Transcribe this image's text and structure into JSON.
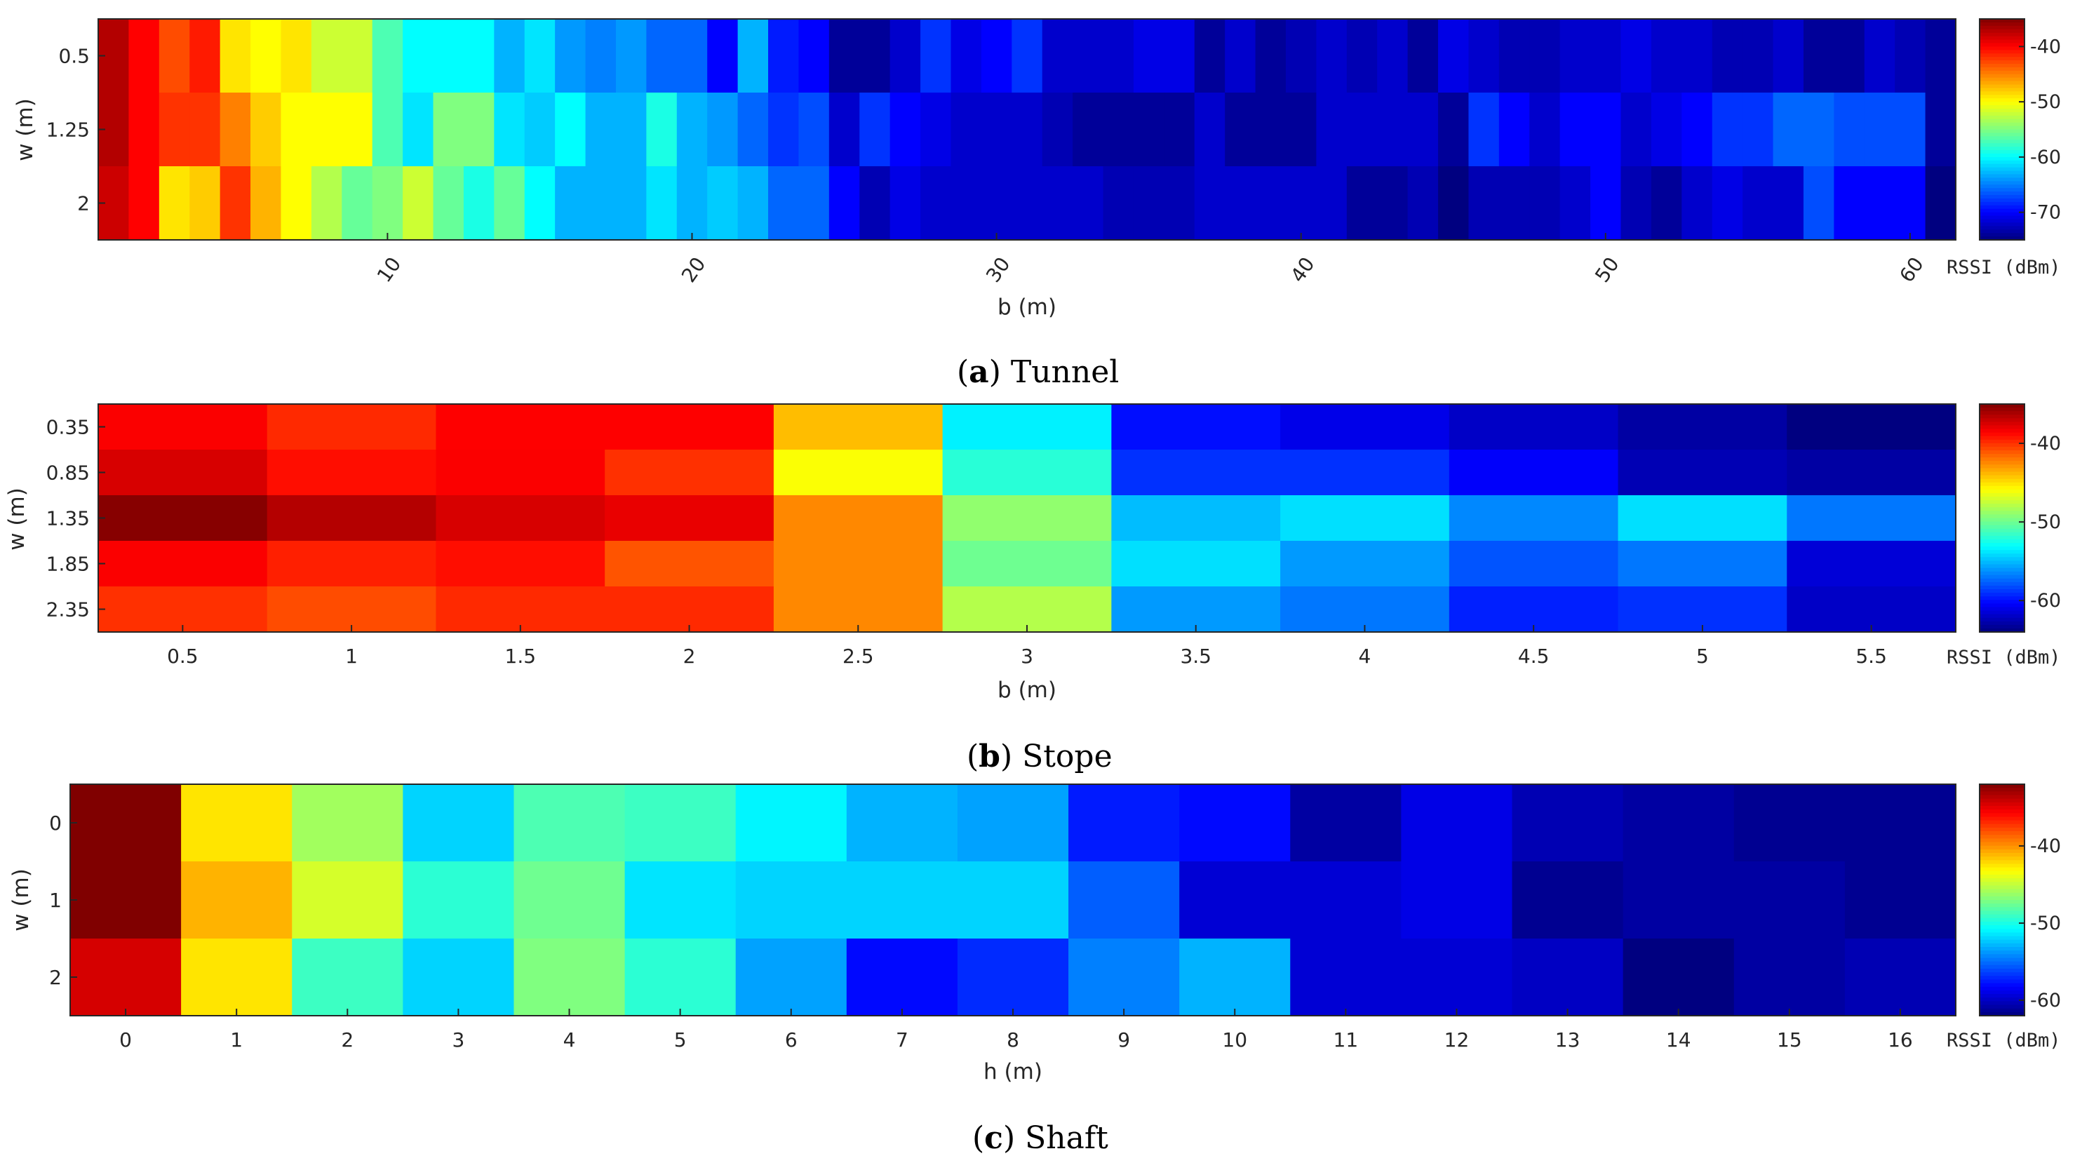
{
  "figure": {
    "colormap": "jet",
    "colorbar_unit": "RSSI (dBm)",
    "captions": [
      {
        "letter": "a",
        "text": "Tunnel"
      },
      {
        "letter": "b",
        "text": "Stope"
      },
      {
        "letter": "c",
        "text": "Shaft"
      }
    ]
  },
  "chart_data": [
    {
      "type": "heatmap",
      "panel": "a",
      "title": "Tunnel",
      "xlabel": "b (m)",
      "ylabel": "w (m)",
      "x_ticks": [
        "10",
        "20",
        "30",
        "40",
        "50",
        "60"
      ],
      "y_categories": [
        "0.5",
        "1.25",
        "2"
      ],
      "x_categories_count": 61,
      "colorbar_label": "RSSI (dBm)",
      "colorbar_ticks": [
        "-40",
        "-50",
        "-60",
        "-70"
      ],
      "clim": [
        -75,
        -35
      ],
      "values": [
        [
          -37,
          -40,
          -43,
          -41,
          -49,
          -50,
          -49,
          -52,
          -52,
          -57,
          -60,
          -60,
          -60,
          -63,
          -61,
          -64,
          -65,
          -64,
          -66,
          -66,
          -70,
          -63,
          -69,
          -70,
          -74,
          -74,
          -72,
          -68,
          -71,
          -70,
          -68,
          -72,
          -72,
          -72,
          -71,
          -71,
          -74,
          -72,
          -74,
          -73,
          -72,
          -73,
          -72,
          -74,
          -71,
          -72,
          -73,
          -73,
          -72,
          -72,
          -71,
          -72,
          -72,
          -73,
          -73,
          -72,
          -74,
          -74,
          -72,
          -73,
          -74
        ],
        [
          -37,
          -40,
          -42,
          -42,
          -45,
          -48,
          -50,
          -50,
          -50,
          -57,
          -61,
          -55,
          -55,
          -61,
          -62,
          -60,
          -63,
          -63,
          -59,
          -63,
          -64,
          -66,
          -68,
          -67,
          -72,
          -68,
          -70,
          -71,
          -72,
          -72,
          -72,
          -73,
          -74,
          -74,
          -74,
          -74,
          -72,
          -74,
          -74,
          -74,
          -72,
          -72,
          -72,
          -72,
          -74,
          -68,
          -70,
          -72,
          -70,
          -70,
          -72,
          -71,
          -70,
          -68,
          -68,
          -66,
          -66,
          -67,
          -67,
          -67,
          -74
        ],
        [
          -38,
          -40,
          -49,
          -48,
          -42,
          -47,
          -50,
          -53,
          -56,
          -55,
          -52,
          -56,
          -59,
          -56,
          -60,
          -63,
          -63,
          -63,
          -61,
          -63,
          -62,
          -63,
          -66,
          -66,
          -70,
          -73,
          -71,
          -72,
          -72,
          -72,
          -72,
          -72,
          -72,
          -73,
          -73,
          -73,
          -72,
          -72,
          -72,
          -72,
          -72,
          -74,
          -74,
          -73,
          -75,
          -73,
          -73,
          -73,
          -72,
          -70,
          -73,
          -74,
          -72,
          -71,
          -72,
          -72,
          -67,
          -70,
          -70,
          -70,
          -75
        ]
      ]
    },
    {
      "type": "heatmap",
      "panel": "b",
      "title": "Stope",
      "xlabel": "b (m)",
      "ylabel": "w (m)",
      "x_categories": [
        "0.5",
        "1",
        "1.5",
        "2",
        "2.5",
        "3",
        "3.5",
        "4",
        "4.5",
        "5",
        "5.5"
      ],
      "y_categories": [
        "0.35",
        "0.85",
        "1.35",
        "1.85",
        "2.35"
      ],
      "colorbar_label": "RSSI (dBm)",
      "colorbar_ticks": [
        "-40",
        "-50",
        "-60"
      ],
      "clim": [
        -64,
        -35
      ],
      "values": [
        [
          -38.5,
          -39.8,
          -38.6,
          -38.6,
          -44.0,
          -53.5,
          -60.0,
          -61.0,
          -62.0,
          -63.0,
          -64.0
        ],
        [
          -37.5,
          -39.0,
          -38.5,
          -40.0,
          -46.0,
          -52.0,
          -59.0,
          -59.0,
          -60.5,
          -62.5,
          -63.0
        ],
        [
          -35.2,
          -36.5,
          -37.5,
          -38.0,
          -42.5,
          -49.0,
          -55.0,
          -54.0,
          -56.5,
          -54.0,
          -57.0
        ],
        [
          -38.5,
          -39.5,
          -39.0,
          -41.0,
          -42.5,
          -50.0,
          -54.0,
          -56.0,
          -58.0,
          -57.0,
          -61.5
        ],
        [
          -40.0,
          -40.8,
          -39.8,
          -39.8,
          -42.5,
          -48.0,
          -56.0,
          -57.0,
          -59.5,
          -59.0,
          -62.0
        ]
      ]
    },
    {
      "type": "heatmap",
      "panel": "c",
      "title": "Shaft",
      "xlabel": "h (m)",
      "ylabel": "w (m)",
      "x_categories": [
        "0",
        "1",
        "2",
        "3",
        "4",
        "5",
        "6",
        "7",
        "8",
        "9",
        "10",
        "11",
        "12",
        "13",
        "14",
        "15",
        "16"
      ],
      "y_categories": [
        "0",
        "1",
        "2"
      ],
      "colorbar_label": "RSSI (dBm)",
      "colorbar_ticks": [
        "-40",
        "-50",
        "-60"
      ],
      "clim": [
        -62,
        -32
      ],
      "values": [
        [
          -32.0,
          -42.5,
          -46.0,
          -52.0,
          -48.5,
          -49.0,
          -51.0,
          -53.0,
          -53.5,
          -57.5,
          -58.0,
          -61.0,
          -59.0,
          -60.5,
          -61.0,
          -61.5,
          -61.5
        ],
        [
          -32.0,
          -41.0,
          -44.5,
          -49.5,
          -47.5,
          -51.5,
          -52.0,
          -52.0,
          -52.0,
          -55.5,
          -59.5,
          -59.5,
          -59.0,
          -61.5,
          -61.0,
          -61.0,
          -61.5
        ],
        [
          -34.5,
          -42.5,
          -49.0,
          -52.0,
          -47.0,
          -49.5,
          -53.5,
          -58.0,
          -57.0,
          -54.5,
          -53.0,
          -59.5,
          -59.5,
          -60.0,
          -62.0,
          -61.0,
          -60.5
        ]
      ]
    }
  ]
}
